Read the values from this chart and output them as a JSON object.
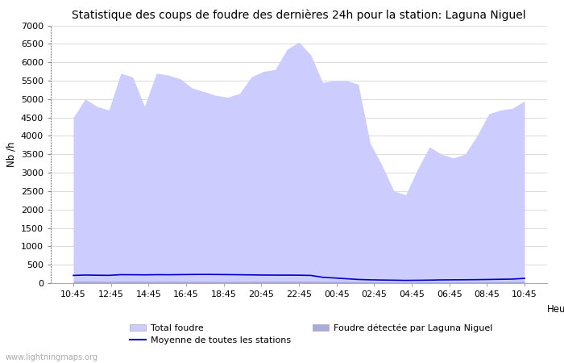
{
  "title": "Statistique des coups de foudre des dernières 24h pour la station: Laguna Niguel",
  "xlabel": "Heure",
  "ylabel": "Nb /h",
  "watermark": "www.lightningmaps.org",
  "x_labels": [
    "10:45",
    "12:45",
    "14:45",
    "16:45",
    "18:45",
    "20:45",
    "22:45",
    "00:45",
    "02:45",
    "04:45",
    "06:45",
    "08:45",
    "10:45"
  ],
  "ylim": [
    0,
    7000
  ],
  "yticks": [
    0,
    500,
    1000,
    1500,
    2000,
    2500,
    3000,
    3500,
    4000,
    4500,
    5000,
    5500,
    6000,
    6500,
    7000
  ],
  "total_foudre_color": "#ccccff",
  "local_foudre_color": "#aaaadd",
  "moyenne_color": "#0000cc",
  "background_color": "#ffffff",
  "total_foudre": [
    4500,
    5000,
    4800,
    4700,
    5700,
    5600,
    4800,
    5700,
    5650,
    5550,
    5300,
    5200,
    5100,
    5050,
    5150,
    5600,
    5750,
    5800,
    6350,
    6550,
    6200,
    5450,
    5500,
    5500,
    5400,
    3800,
    3200,
    2500,
    2400,
    3100,
    3700,
    3500,
    3400,
    3500,
    4000,
    4600,
    4700,
    4750,
    4950
  ],
  "local_foudre": [
    50,
    55,
    50,
    48,
    55,
    52,
    48,
    52,
    50,
    48,
    46,
    45,
    45,
    44,
    45,
    48,
    50,
    50,
    52,
    53,
    50,
    48,
    46,
    44,
    42,
    38,
    35,
    30,
    28,
    32,
    38,
    36,
    34,
    35,
    38,
    42,
    44,
    45,
    48
  ],
  "moyenne": [
    210,
    220,
    215,
    212,
    230,
    228,
    225,
    230,
    228,
    232,
    235,
    237,
    235,
    232,
    228,
    224,
    220,
    218,
    218,
    216,
    210,
    160,
    140,
    120,
    100,
    90,
    85,
    80,
    75,
    78,
    82,
    88,
    90,
    92,
    95,
    100,
    105,
    110,
    130
  ],
  "n_points": 39,
  "legend_total_label": "Total foudre",
  "legend_local_label": "Foudre détectée par Laguna Niguel",
  "legend_moyenne_label": "Moyenne de toutes les stations",
  "title_fontsize": 10,
  "tick_fontsize": 8,
  "label_fontsize": 8.5
}
